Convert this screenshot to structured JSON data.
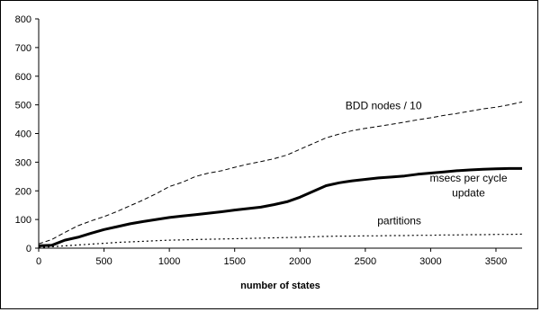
{
  "chart_data": {
    "type": "line",
    "xlabel": "number of states",
    "ylabel": "",
    "xlim": [
      0,
      3700
    ],
    "ylim": [
      0,
      800
    ],
    "x_ticks": [
      0,
      500,
      1000,
      1500,
      2000,
      2500,
      3000,
      3500
    ],
    "y_ticks": [
      0,
      100,
      200,
      300,
      400,
      500,
      600,
      700,
      800
    ],
    "grid": false,
    "legend": "none",
    "series": [
      {
        "name": "BDD nodes / 10",
        "style": "dashed",
        "color": "#000000",
        "x": [
          0,
          100,
          200,
          300,
          400,
          500,
          600,
          700,
          800,
          900,
          1000,
          1100,
          1200,
          1300,
          1400,
          1500,
          1600,
          1700,
          1800,
          1900,
          2000,
          2100,
          2200,
          2300,
          2400,
          2500,
          2600,
          2700,
          2800,
          2900,
          3000,
          3100,
          3200,
          3300,
          3400,
          3500,
          3600,
          3700
        ],
        "values": [
          15,
          30,
          55,
          78,
          95,
          110,
          128,
          148,
          168,
          190,
          215,
          230,
          250,
          262,
          270,
          282,
          293,
          302,
          312,
          325,
          345,
          365,
          385,
          398,
          410,
          418,
          425,
          432,
          440,
          448,
          455,
          463,
          470,
          478,
          486,
          492,
          500,
          510
        ]
      },
      {
        "name": "msecs per cycle update",
        "style": "solid-thick",
        "color": "#000000",
        "x": [
          0,
          100,
          200,
          300,
          400,
          500,
          600,
          700,
          800,
          900,
          1000,
          1100,
          1200,
          1300,
          1400,
          1500,
          1600,
          1700,
          1800,
          1900,
          2000,
          2100,
          2200,
          2300,
          2400,
          2500,
          2600,
          2700,
          2800,
          2900,
          3000,
          3100,
          3200,
          3300,
          3400,
          3500,
          3600,
          3700
        ],
        "values": [
          8,
          10,
          28,
          38,
          52,
          65,
          75,
          85,
          93,
          100,
          107,
          112,
          117,
          122,
          127,
          133,
          138,
          143,
          152,
          162,
          178,
          198,
          218,
          228,
          235,
          240,
          245,
          248,
          252,
          258,
          262,
          266,
          270,
          273,
          275,
          277,
          278,
          278
        ]
      },
      {
        "name": "partitions",
        "style": "dotted",
        "color": "#000000",
        "x": [
          0,
          100,
          200,
          300,
          400,
          500,
          600,
          700,
          800,
          900,
          1000,
          1100,
          1200,
          1300,
          1400,
          1500,
          1600,
          1700,
          1800,
          1900,
          2000,
          2100,
          2200,
          2300,
          2400,
          2500,
          2600,
          2700,
          2800,
          2900,
          3000,
          3100,
          3200,
          3300,
          3400,
          3500,
          3600,
          3700
        ],
        "values": [
          2,
          5,
          8,
          11,
          14,
          17,
          20,
          22,
          24,
          26,
          28,
          29,
          30,
          31,
          32,
          33,
          34,
          35,
          36,
          37,
          38,
          40,
          41,
          42,
          42,
          43,
          43,
          44,
          44,
          45,
          45,
          46,
          46,
          47,
          47,
          48,
          48,
          49
        ]
      }
    ],
    "annotations": [
      {
        "text": "BDD nodes / 10",
        "series": 0
      },
      {
        "text": "msecs per cycle",
        "series": 1
      },
      {
        "text": "update",
        "series": 1
      },
      {
        "text": "partitions",
        "series": 2
      }
    ]
  }
}
